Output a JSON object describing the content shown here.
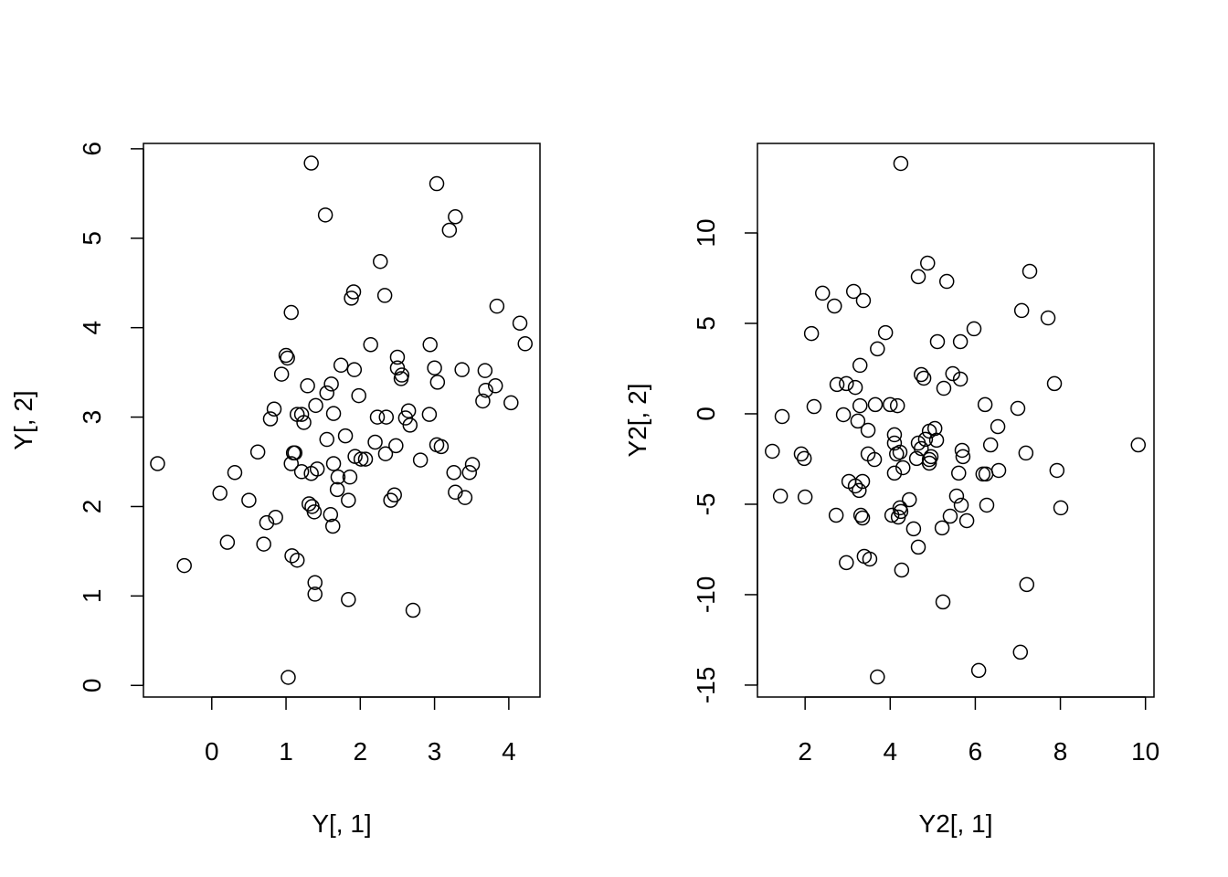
{
  "chart_data": [
    {
      "type": "scatter",
      "x_label": "Y[, 1]",
      "y_label": "Y[, 2]",
      "color": "#000000",
      "xlim": [
        -0.92,
        4.42
      ],
      "ylim": [
        -0.13,
        6.06
      ],
      "xticks": [
        0,
        1,
        2,
        3,
        4
      ],
      "yticks": [
        0,
        1,
        2,
        3,
        4,
        5,
        6
      ],
      "x": [
        -0.73,
        -0.37,
        0.11,
        0.21,
        0.31,
        0.5,
        0.62,
        0.7,
        0.74,
        0.79,
        0.84,
        0.86,
        0.94,
        1.0,
        1.02,
        1.03,
        1.07,
        1.07,
        1.08,
        1.1,
        1.12,
        1.15,
        1.15,
        1.21,
        1.21,
        1.24,
        1.29,
        1.31,
        1.34,
        1.35,
        1.34,
        1.38,
        1.39,
        1.39,
        1.4,
        1.42,
        1.53,
        1.55,
        1.55,
        1.6,
        1.61,
        1.63,
        1.64,
        1.64,
        1.69,
        1.7,
        1.74,
        1.8,
        1.84,
        1.84,
        1.86,
        1.88,
        1.91,
        1.92,
        1.93,
        1.98,
        2.01,
        2.07,
        2.14,
        2.2,
        2.23,
        2.27,
        2.33,
        2.34,
        2.35,
        2.41,
        2.46,
        2.48,
        2.5,
        2.5,
        2.55,
        2.56,
        2.61,
        2.65,
        2.67,
        2.71,
        2.81,
        2.93,
        2.94,
        3.0,
        3.03,
        3.03,
        3.04,
        3.09,
        3.2,
        3.26,
        3.28,
        3.28,
        3.37,
        3.41,
        3.47,
        3.51,
        3.65,
        3.68,
        3.69,
        3.82,
        3.84,
        4.03,
        4.15,
        4.22
      ],
      "y": [
        2.48,
        1.34,
        2.15,
        1.6,
        2.38,
        2.07,
        2.61,
        1.58,
        1.82,
        2.98,
        3.09,
        1.88,
        3.48,
        3.69,
        3.66,
        0.09,
        4.17,
        2.48,
        1.45,
        2.6,
        2.6,
        1.4,
        3.03,
        3.03,
        2.39,
        2.94,
        3.35,
        2.03,
        5.84,
        2.0,
        2.37,
        1.94,
        1.15,
        1.02,
        3.13,
        2.42,
        5.26,
        3.27,
        2.75,
        1.91,
        3.37,
        1.78,
        3.04,
        2.48,
        2.19,
        2.33,
        3.58,
        2.79,
        0.96,
        2.07,
        2.33,
        4.33,
        4.4,
        3.53,
        2.56,
        3.24,
        2.53,
        2.53,
        3.81,
        2.72,
        3.0,
        4.74,
        4.36,
        2.59,
        3.0,
        2.07,
        2.13,
        2.68,
        3.67,
        3.55,
        3.43,
        3.47,
        2.99,
        3.07,
        2.91,
        0.84,
        2.52,
        3.03,
        3.81,
        3.55,
        2.69,
        5.61,
        3.39,
        2.67,
        5.09,
        2.38,
        2.16,
        5.24,
        3.53,
        2.1,
        2.38,
        2.47,
        3.18,
        3.52,
        3.3,
        3.35,
        4.24,
        3.16,
        4.05,
        3.82
      ]
    },
    {
      "type": "scatter",
      "x_label": "Y2[, 1]",
      "y_label": "Y2[, 2]",
      "color": "#000000",
      "xlim": [
        0.88,
        10.2
      ],
      "ylim": [
        -15.66,
        14.95
      ],
      "xticks": [
        2,
        4,
        6,
        8,
        10
      ],
      "yticks": [
        -15,
        -10,
        -5,
        0,
        5,
        10
      ],
      "x": [
        1.23,
        1.42,
        1.46,
        1.91,
        1.98,
        2.0,
        2.15,
        2.21,
        2.41,
        2.69,
        2.73,
        2.75,
        2.9,
        2.97,
        2.97,
        3.03,
        3.14,
        3.18,
        3.18,
        3.24,
        3.27,
        3.29,
        3.29,
        3.31,
        3.35,
        3.35,
        3.37,
        3.39,
        3.48,
        3.48,
        3.52,
        3.63,
        3.65,
        3.7,
        3.7,
        3.89,
        4.0,
        4.04,
        4.1,
        4.1,
        4.1,
        4.15,
        4.17,
        4.19,
        4.23,
        4.23,
        4.25,
        4.25,
        4.27,
        4.3,
        4.45,
        4.55,
        4.62,
        4.66,
        4.66,
        4.66,
        4.73,
        4.73,
        4.79,
        4.83,
        4.88,
        4.92,
        4.92,
        4.92,
        4.96,
        5.05,
        5.09,
        5.11,
        5.22,
        5.24,
        5.26,
        5.33,
        5.41,
        5.47,
        5.56,
        5.61,
        5.65,
        5.65,
        5.67,
        5.69,
        5.71,
        5.8,
        5.97,
        6.08,
        6.18,
        6.23,
        6.25,
        6.27,
        6.36,
        6.53,
        6.55,
        7.0,
        7.06,
        7.09,
        7.19,
        7.21,
        7.28,
        7.71,
        7.86,
        7.92,
        8.01,
        9.83
      ],
      "y": [
        -2.07,
        -4.55,
        -0.15,
        -2.22,
        -2.47,
        -4.6,
        4.44,
        0.4,
        6.67,
        5.96,
        -5.61,
        1.62,
        -0.05,
        -8.23,
        1.67,
        -3.74,
        6.77,
        1.46,
        -3.99,
        -0.4,
        -4.24,
        2.68,
        0.45,
        -5.61,
        -5.76,
        -3.74,
        6.26,
        -7.88,
        -0.91,
        -2.22,
        -8.03,
        -2.53,
        0.51,
        3.59,
        -14.55,
        4.49,
        0.51,
        -5.61,
        -1.16,
        -1.62,
        -3.28,
        -2.22,
        0.45,
        -5.71,
        -5.2,
        -2.12,
        13.84,
        -5.4,
        -8.64,
        -2.98,
        -4.75,
        -6.36,
        -2.47,
        -1.62,
        -7.37,
        7.58,
        2.17,
        -1.92,
        1.97,
        -1.41,
        8.33,
        -0.96,
        -2.53,
        -2.73,
        -2.37,
        -0.81,
        -1.46,
        3.99,
        -6.31,
        -10.4,
        1.41,
        7.32,
        -5.66,
        2.22,
        -4.55,
        -3.28,
        3.99,
        1.92,
        -5.05,
        -2.02,
        -2.37,
        -5.91,
        4.7,
        -14.19,
        -3.33,
        0.51,
        -3.33,
        -5.05,
        -1.72,
        -0.71,
        -3.13,
        0.3,
        -13.18,
        5.71,
        -2.17,
        -9.44,
        7.88,
        5.3,
        1.67,
        -3.13,
        -5.2,
        -1.72
      ]
    }
  ]
}
